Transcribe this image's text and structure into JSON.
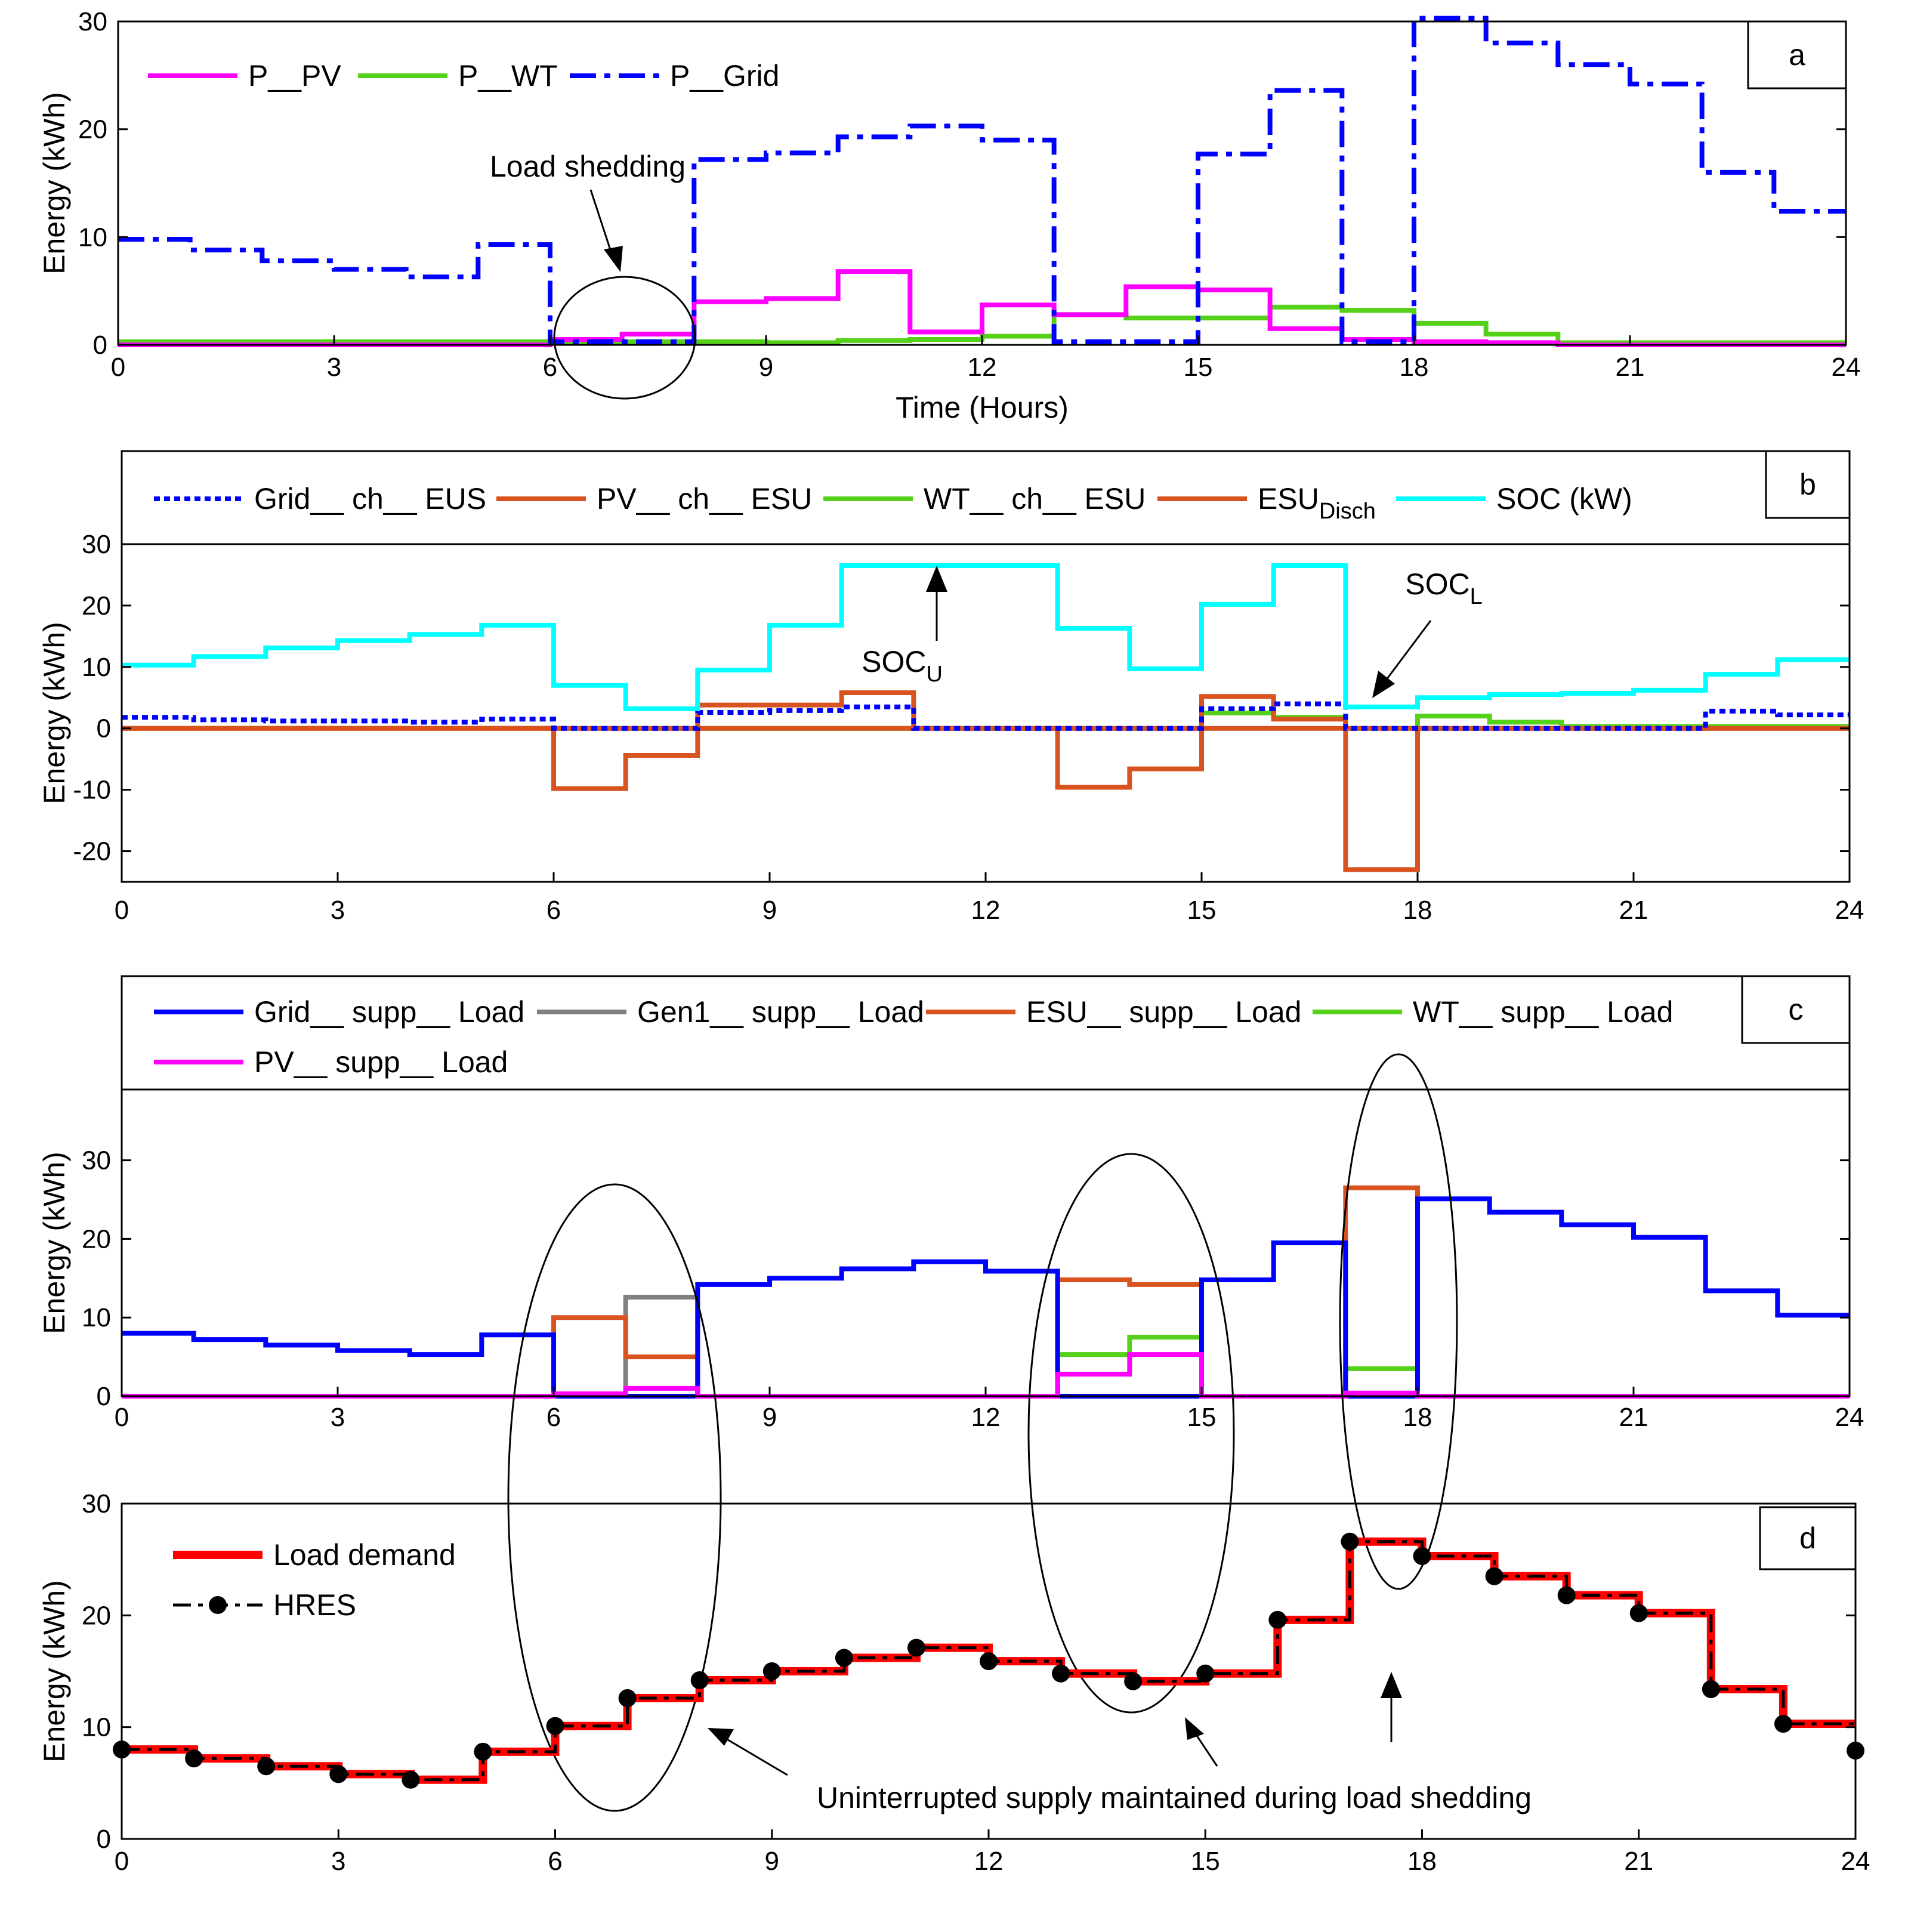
{
  "figure": {
    "background": "#ffffff",
    "colors": {
      "magenta": "#ff00ff",
      "green": "#55d11a",
      "blue": "#0000ff",
      "orange": "#d9531e",
      "cyan": "#00ffff",
      "gray": "#808080",
      "red": "#ff0000",
      "black": "#000000"
    }
  },
  "chart_data": [
    {
      "id": "a",
      "type": "line",
      "step": true,
      "panel_label": "a",
      "xlabel": "Time (Hours)",
      "ylabel": "Energy (kWh)",
      "xlim": [
        0,
        24
      ],
      "ylim": [
        0,
        30
      ],
      "xticks": [
        0,
        3,
        6,
        9,
        12,
        15,
        18,
        21,
        24
      ],
      "yticks": [
        0,
        10,
        20,
        30
      ],
      "legend_position": "top-left",
      "annotations": [
        {
          "text": "Load shedding"
        }
      ],
      "series": [
        {
          "name": "P__PV",
          "color": "#ff00ff",
          "style": "solid",
          "values": [
            0,
            0,
            0,
            0,
            0,
            0,
            0.5,
            1,
            4,
            4.3,
            6.8,
            1.2,
            3.7,
            2.8,
            5.4,
            5.1,
            1.5,
            0.5,
            0.3,
            0.2,
            0,
            0,
            0,
            0
          ]
        },
        {
          "name": "P__WT",
          "color": "#55d11a",
          "style": "solid",
          "values": [
            0.3,
            0.3,
            0.3,
            0.3,
            0.3,
            0.3,
            0.3,
            0.3,
            0.3,
            0.2,
            0.4,
            0.5,
            0.8,
            2.8,
            2.5,
            2.5,
            3.5,
            3.2,
            2,
            1,
            0.2,
            0.2,
            0.2,
            0.2
          ]
        },
        {
          "name": "P__Grid",
          "color": "#0000ff",
          "style": "dashdot",
          "values": [
            9.8,
            8.8,
            7.8,
            7,
            6.3,
            9.3,
            0.3,
            0.3,
            17.2,
            17.8,
            19.3,
            20.3,
            19,
            0.3,
            0.3,
            17.7,
            23.6,
            0.3,
            30.3,
            28,
            26,
            24.2,
            16,
            12.4
          ]
        }
      ]
    },
    {
      "id": "b",
      "type": "line",
      "step": true,
      "panel_label": "b",
      "xlabel": "",
      "ylabel": "Energy (kWh)",
      "xlim": [
        0,
        24
      ],
      "ylim": [
        -25,
        30
      ],
      "xticks": [
        0,
        3,
        6,
        9,
        12,
        15,
        18,
        21,
        24
      ],
      "yticks": [
        -20,
        -10,
        0,
        10,
        20,
        30
      ],
      "legend_position": "top",
      "annotations": [
        {
          "text": "SOC",
          "subscript": "U"
        },
        {
          "text": "SOC",
          "subscript": "L"
        }
      ],
      "series": [
        {
          "name": "Grid__ ch__ EUS",
          "color": "#0000ff",
          "style": "dotted",
          "values": [
            1.8,
            1.4,
            1.2,
            1.2,
            1,
            1.5,
            0,
            0,
            2.6,
            2.9,
            3.5,
            0,
            0,
            0,
            0,
            3.2,
            4,
            0,
            0,
            0,
            0,
            0,
            2.8,
            2.2
          ]
        },
        {
          "name": "PV__ ch__ ESU",
          "color": "#d9531e",
          "style": "solid",
          "values": [
            0,
            0,
            0,
            0,
            0,
            0,
            0,
            0,
            3.8,
            3.8,
            5.8,
            0,
            0,
            0,
            0,
            5.2,
            1.5,
            0,
            0,
            0,
            0,
            0,
            0,
            0
          ]
        },
        {
          "name": "WT__ ch__ ESU",
          "color": "#55d11a",
          "style": "solid",
          "values": [
            0,
            0,
            0,
            0,
            0,
            0,
            0,
            0,
            0,
            0,
            0,
            0,
            0,
            0,
            0,
            2.5,
            1.8,
            0,
            2,
            1,
            0.3,
            0.3,
            0.3,
            0.3
          ]
        },
        {
          "name": "ESU",
          "name_subscript": "Disch",
          "color": "#d9531e",
          "style": "solid",
          "values": [
            0,
            0,
            0,
            0,
            0,
            0,
            -9.8,
            -4.4,
            0,
            0,
            0,
            0,
            0,
            -9.6,
            -6.6,
            0,
            0,
            -23,
            0,
            0,
            0,
            0,
            0,
            0
          ]
        },
        {
          "name": "SOC (kW)",
          "color": "#00ffff",
          "style": "solid",
          "values": [
            10.3,
            11.7,
            13.1,
            14.3,
            15.3,
            16.8,
            7,
            3.2,
            9.5,
            16.8,
            26.5,
            26.5,
            26.5,
            16.3,
            9.7,
            20.2,
            26.5,
            3.5,
            5,
            5.5,
            5.7,
            6.2,
            8.8,
            11.2
          ]
        }
      ]
    },
    {
      "id": "c",
      "type": "line",
      "step": true,
      "panel_label": "c",
      "xlabel": "",
      "ylabel": "Energy (kWh)",
      "xlim": [
        0,
        24
      ],
      "ylim": [
        0,
        39
      ],
      "xticks": [
        0,
        3,
        6,
        9,
        12,
        15,
        18,
        21,
        24
      ],
      "yticks": [
        0,
        10,
        20,
        30
      ],
      "legend_position": "top",
      "series": [
        {
          "name": "Grid__ supp__ Load",
          "color": "#0000ff",
          "style": "solid",
          "values": [
            8,
            7.2,
            6.5,
            5.8,
            5.3,
            7.8,
            0,
            0,
            14.2,
            15,
            16.2,
            17.1,
            15.9,
            0,
            0,
            14.8,
            19.5,
            0,
            25.1,
            23.4,
            21.8,
            20.2,
            13.4,
            10.3
          ]
        },
        {
          "name": "Gen1__ supp__ Load",
          "color": "#808080",
          "style": "solid",
          "values": [
            0,
            0,
            0,
            0,
            0,
            0,
            0,
            12.6,
            0,
            0,
            0,
            0,
            0,
            0,
            0,
            0,
            0,
            0,
            0,
            0,
            0,
            0,
            0,
            0
          ]
        },
        {
          "name": "ESU__ supp__ Load",
          "color": "#d9531e",
          "style": "solid",
          "values": [
            0,
            0,
            0,
            0,
            0,
            0,
            10,
            5,
            0,
            0,
            0,
            0,
            0,
            14.8,
            14.2,
            0,
            0,
            26.5,
            0,
            0,
            0,
            0,
            0,
            0
          ]
        },
        {
          "name": "WT__ supp__ Load",
          "color": "#55d11a",
          "style": "solid",
          "values": [
            0,
            0,
            0,
            0,
            0,
            0,
            0,
            0,
            0,
            0,
            0,
            0,
            0,
            5.3,
            7.5,
            0,
            0,
            3.5,
            0,
            0,
            0,
            0,
            0,
            0
          ]
        },
        {
          "name": "PV__ supp__ Load",
          "color": "#ff00ff",
          "style": "solid",
          "values": [
            0,
            0,
            0,
            0,
            0,
            0,
            0.3,
            1,
            0,
            0,
            0,
            0,
            0,
            2.8,
            5.3,
            0,
            0,
            0.4,
            0,
            0,
            0,
            0,
            0,
            0
          ]
        }
      ]
    },
    {
      "id": "d",
      "type": "line",
      "step": true,
      "panel_label": "d",
      "xlabel": "",
      "ylabel": "Energy (kWh)",
      "xlim": [
        0,
        24
      ],
      "ylim": [
        0,
        30
      ],
      "xticks": [
        0,
        3,
        6,
        9,
        12,
        15,
        18,
        21,
        24
      ],
      "yticks": [
        0,
        10,
        20,
        30
      ],
      "legend_position": "top-left",
      "annotations": [
        {
          "text": "Uninterrupted supply maintained during load shedding"
        }
      ],
      "series": [
        {
          "name": "Load demand",
          "color": "#ff0000",
          "style": "solid",
          "values": [
            8,
            7.2,
            6.5,
            5.8,
            5.3,
            7.8,
            10.1,
            12.6,
            14.2,
            15,
            16.2,
            17.1,
            15.9,
            14.8,
            14.1,
            14.8,
            19.6,
            26.6,
            25.3,
            23.5,
            21.8,
            20.2,
            13.4,
            10.3,
            7.9
          ]
        },
        {
          "name": "HRES",
          "color": "#000000",
          "style": "dashdot-marker",
          "values": [
            8,
            7.2,
            6.5,
            5.8,
            5.3,
            7.8,
            10.1,
            12.6,
            14.2,
            15,
            16.2,
            17.1,
            15.9,
            14.8,
            14.1,
            14.8,
            19.6,
            26.6,
            25.3,
            23.5,
            21.8,
            20.2,
            13.4,
            10.3,
            7.9
          ]
        }
      ]
    }
  ]
}
